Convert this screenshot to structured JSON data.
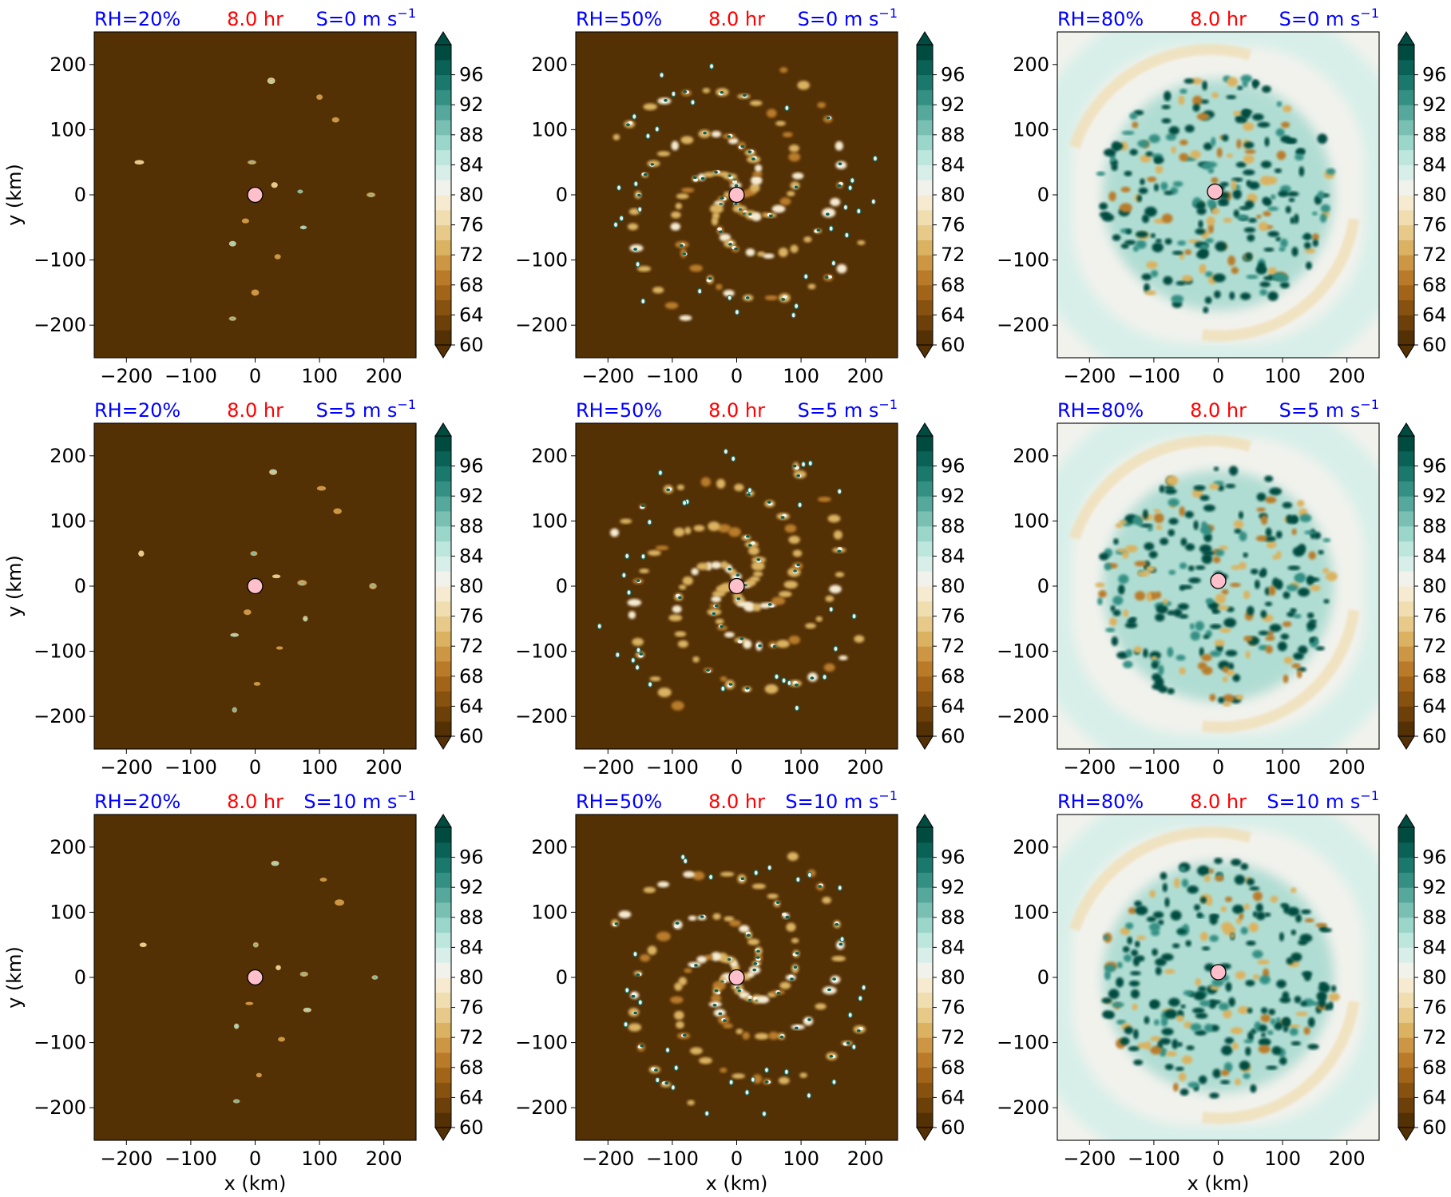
{
  "figure": {
    "rows": [
      {
        "shear": "S=0 m s",
        "ylabel": "y (km)"
      },
      {
        "shear": "S=5 m s",
        "ylabel": "y (km)"
      },
      {
        "shear": "S=10 m s",
        "ylabel": "y (km)"
      }
    ],
    "columns": [
      {
        "rh": "RH=20%",
        "xlabel": "x (km)"
      },
      {
        "rh": "RH=50%",
        "xlabel": "x (km)"
      },
      {
        "rh": "RH=80%",
        "xlabel": "x (km)"
      }
    ],
    "time_label": "8.0 hr",
    "shear_unit_exponent": "−1",
    "colors": {
      "label_blue": "#0000ff",
      "label_red": "#ff0000",
      "center_marker": "#ffc0cb",
      "dry": "#543005",
      "moist": "#003c30",
      "neutral": "#f5f5f5"
    }
  },
  "chart_data": {
    "type": "heatmap",
    "axes": {
      "x_ticks": [
        "−200",
        "−100",
        "0",
        "100",
        "200"
      ],
      "x_tick_values": [
        -200,
        -100,
        0,
        100,
        200
      ],
      "y_ticks": [
        "200",
        "100",
        "0",
        "−100",
        "−200"
      ],
      "y_tick_values": [
        200,
        100,
        0,
        -100,
        -200
      ],
      "xlim": [
        -250,
        250
      ],
      "ylim": [
        -250,
        250
      ],
      "xlabel": "x (km)",
      "ylabel": "y (km)"
    },
    "colorbar": {
      "ticks": [
        "96",
        "92",
        "88",
        "84",
        "80",
        "76",
        "72",
        "68",
        "64",
        "60"
      ],
      "levels": [
        60,
        62,
        64,
        66,
        68,
        70,
        72,
        74,
        76,
        78,
        80,
        82,
        84,
        86,
        88,
        90,
        92,
        94,
        96,
        98
      ],
      "extend": "both",
      "colormap": [
        "#543005",
        "#6d4009",
        "#87510f",
        "#a16418",
        "#b97b29",
        "#cc9644",
        "#dab261",
        "#e7ca8a",
        "#f0ddb0",
        "#f6ebd1",
        "#f2f2ed",
        "#d8efe9",
        "#bde6dd",
        "#9bd6cb",
        "#79c0b3",
        "#56a89c",
        "#359084",
        "#1b786d",
        "#0a6156",
        "#004b40"
      ]
    },
    "panels": [
      {
        "row": 0,
        "col": 0,
        "rh": 20,
        "shear": 0,
        "time_hr": 8.0,
        "regime": "dry",
        "background": 60,
        "center_km": [
          0,
          0
        ]
      },
      {
        "row": 0,
        "col": 1,
        "rh": 50,
        "shear": 0,
        "time_hr": 8.0,
        "regime": "spiral",
        "background": 60,
        "center_km": [
          0,
          0
        ]
      },
      {
        "row": 0,
        "col": 2,
        "rh": 80,
        "shear": 0,
        "time_hr": 8.0,
        "regime": "moist",
        "background": 80,
        "center_km": [
          -5,
          5
        ]
      },
      {
        "row": 1,
        "col": 0,
        "rh": 20,
        "shear": 5,
        "time_hr": 8.0,
        "regime": "dry",
        "background": 60,
        "center_km": [
          0,
          0
        ]
      },
      {
        "row": 1,
        "col": 1,
        "rh": 50,
        "shear": 5,
        "time_hr": 8.0,
        "regime": "spiral",
        "background": 60,
        "center_km": [
          0,
          0
        ]
      },
      {
        "row": 1,
        "col": 2,
        "rh": 80,
        "shear": 5,
        "time_hr": 8.0,
        "regime": "moist",
        "background": 80,
        "center_km": [
          0,
          8
        ]
      },
      {
        "row": 2,
        "col": 0,
        "rh": 20,
        "shear": 10,
        "time_hr": 8.0,
        "regime": "dry",
        "background": 60,
        "center_km": [
          0,
          0
        ]
      },
      {
        "row": 2,
        "col": 1,
        "rh": 50,
        "shear": 10,
        "time_hr": 8.0,
        "regime": "spiral",
        "background": 60,
        "center_km": [
          0,
          0
        ]
      },
      {
        "row": 2,
        "col": 2,
        "rh": 80,
        "shear": 10,
        "time_hr": 8.0,
        "regime": "moist",
        "background": 80,
        "center_km": [
          0,
          8
        ]
      }
    ]
  }
}
